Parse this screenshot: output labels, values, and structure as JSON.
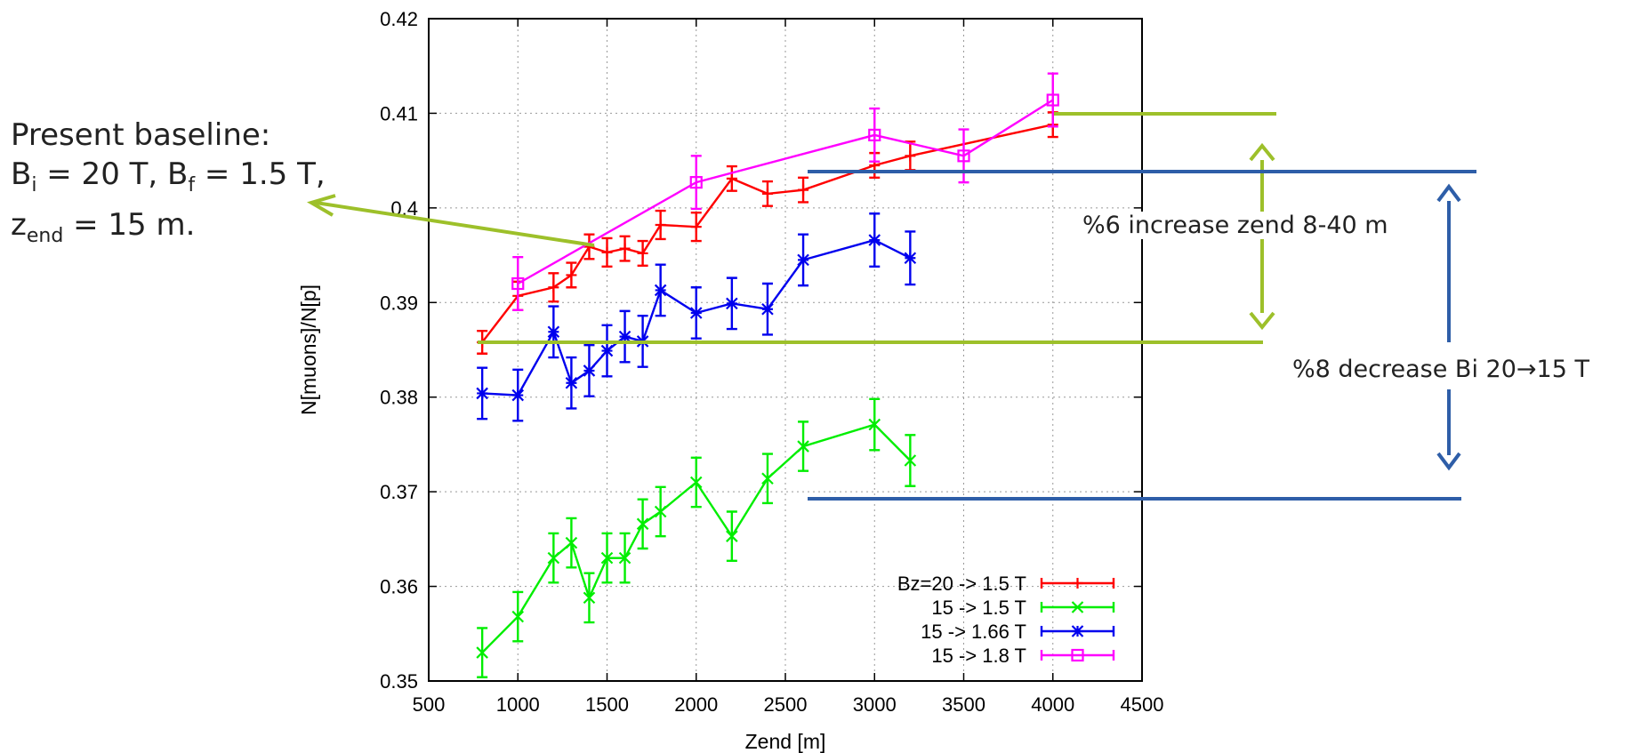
{
  "chart_data": {
    "type": "line",
    "xlabel": "Zend [m]",
    "ylabel": "N[muons]/N[p]",
    "xlim": [
      500,
      4500
    ],
    "ylim": [
      0.35,
      0.42
    ],
    "xticks": [
      500,
      1000,
      1500,
      2000,
      2500,
      3000,
      3500,
      4000,
      4500
    ],
    "yticks": [
      0.35,
      0.36,
      0.37,
      0.38,
      0.39,
      0.4,
      0.41,
      0.42
    ],
    "xtick_labels": [
      "500",
      "1000",
      "1500",
      "2000",
      "2500",
      "3000",
      "3500",
      "4000",
      "4500"
    ],
    "ytick_labels": [
      "0.35",
      "0.36",
      "0.37",
      "0.38",
      "0.39",
      "0.4",
      "0.41",
      "0.42"
    ],
    "grid": true,
    "legend_position": "bottom-right",
    "series": [
      {
        "name": "Bz=20 -> 1.5 T",
        "color": "#ff0000",
        "marker": "plus",
        "x": [
          800,
          1000,
          1200,
          1300,
          1400,
          1500,
          1600,
          1700,
          1800,
          2000,
          2200,
          2400,
          2600,
          3000,
          3200,
          4000
        ],
        "y": [
          0.3858,
          0.3907,
          0.3916,
          0.3929,
          0.3959,
          0.3953,
          0.3957,
          0.3952,
          0.3982,
          0.398,
          0.4031,
          0.4015,
          0.4019,
          0.4045,
          0.4055,
          0.4088
        ],
        "err": [
          0.0012,
          0.0015,
          0.0015,
          0.0013,
          0.0013,
          0.0015,
          0.0013,
          0.0013,
          0.0015,
          0.0015,
          0.0013,
          0.0013,
          0.0013,
          0.0013,
          0.0015,
          0.0013
        ]
      },
      {
        "name": "15 -> 1.5 T",
        "color": "#00ee00",
        "marker": "x",
        "x": [
          800,
          1000,
          1200,
          1300,
          1400,
          1500,
          1600,
          1700,
          1800,
          2000,
          2200,
          2400,
          2600,
          3000,
          3200
        ],
        "y": [
          0.353,
          0.3568,
          0.363,
          0.3646,
          0.3588,
          0.363,
          0.363,
          0.3666,
          0.3679,
          0.371,
          0.3653,
          0.3714,
          0.3748,
          0.3771,
          0.3733
        ],
        "err": [
          0.0026,
          0.0026,
          0.0026,
          0.0026,
          0.0026,
          0.0026,
          0.0026,
          0.0026,
          0.0026,
          0.0026,
          0.0026,
          0.0026,
          0.0026,
          0.0027,
          0.0027
        ]
      },
      {
        "name": "15 -> 1.66 T",
        "color": "#0000ee",
        "marker": "star",
        "x": [
          800,
          1000,
          1200,
          1300,
          1400,
          1500,
          1600,
          1700,
          1800,
          2000,
          2200,
          2400,
          2600,
          3000,
          3200
        ],
        "y": [
          0.3804,
          0.3802,
          0.3869,
          0.3815,
          0.3828,
          0.3849,
          0.3864,
          0.3859,
          0.3913,
          0.3889,
          0.3899,
          0.3893,
          0.3945,
          0.3966,
          0.3947
        ],
        "err": [
          0.0027,
          0.0027,
          0.0027,
          0.0027,
          0.0027,
          0.0027,
          0.0027,
          0.0027,
          0.0027,
          0.0027,
          0.0027,
          0.0027,
          0.0027,
          0.0028,
          0.0028
        ]
      },
      {
        "name": "15 -> 1.8 T",
        "color": "#ff00ff",
        "marker": "square",
        "x": [
          1000,
          2000,
          3000,
          3500,
          4000
        ],
        "y": [
          0.392,
          0.4027,
          0.4077,
          0.4055,
          0.4114
        ],
        "err": [
          0.0028,
          0.0028,
          0.0028,
          0.0028,
          0.0028
        ]
      }
    ],
    "annotations": [
      {
        "id": "baseline",
        "line1": "Present baseline:",
        "bi": "B",
        "bi_sub": "i",
        "bi_text": " = 20 T, ",
        "bf": "B",
        "bf_sub": "f",
        "bf_text": " = 1.5 T,",
        "z": "z",
        "z_sub": "end",
        "z_text": " = 15 m."
      },
      {
        "id": "zend",
        "text": "%6 increase zend 8-40 m",
        "color": "#9dc02a"
      },
      {
        "id": "bi",
        "text": "%8 decrease Bi 20→15 T",
        "color": "#2e5ea8"
      }
    ]
  }
}
